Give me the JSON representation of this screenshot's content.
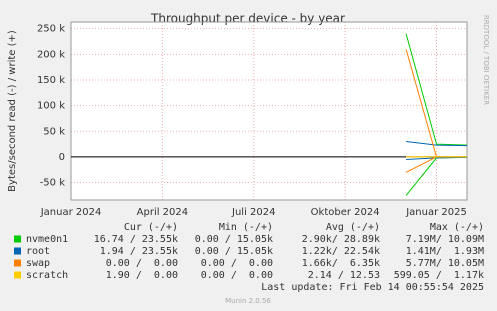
{
  "chart_data": {
    "type": "line",
    "title": "Throughput per device - by year",
    "y_label": "Bytes/second read (-) / write (+)",
    "side_label": "RRDTOOL / TOBI OETIKER",
    "x": [
      "2024-01",
      "2024-02",
      "2024-03",
      "2024-04",
      "2024-05",
      "2024-06",
      "2024-07",
      "2024-08",
      "2024-09",
      "2024-10",
      "2024-11",
      "2024-12",
      "2025-01",
      "2025-02"
    ],
    "xlim": [
      "2024-01",
      "2025-02"
    ],
    "xticks": [
      {
        "value": "2024-01",
        "label": "Januar 2024"
      },
      {
        "value": "2024-04",
        "label": "April 2024"
      },
      {
        "value": "2024-07",
        "label": "Juli 2024"
      },
      {
        "value": "2024-10",
        "label": "Oktober 2024"
      },
      {
        "value": "2025-01",
        "label": "Januar 2025"
      }
    ],
    "ylim": [
      -84000,
      263000
    ],
    "yticks": [
      {
        "value": -50000,
        "label": "-50 k"
      },
      0,
      {
        "value": 50000,
        "label": "50 k"
      },
      {
        "value": 100000,
        "label": "100 k"
      },
      {
        "value": 150000,
        "label": "150 k"
      },
      {
        "value": 200000,
        "label": "200 k"
      },
      {
        "value": 250000,
        "label": "250 k"
      }
    ],
    "grid": true,
    "series": [
      {
        "name": "nvme0n1",
        "color": "#00cc00",
        "values": [
          null,
          null,
          null,
          null,
          null,
          null,
          null,
          null,
          null,
          null,
          null,
          240000,
          25000,
          23000
        ],
        "read": [
          null,
          null,
          null,
          null,
          null,
          null,
          null,
          null,
          null,
          null,
          null,
          -75000,
          -2000,
          -1000
        ]
      },
      {
        "name": "root",
        "color": "#0066b3",
        "values": [
          null,
          null,
          null,
          null,
          null,
          null,
          null,
          null,
          null,
          null,
          null,
          30000,
          23000,
          22000
        ],
        "read": [
          null,
          null,
          null,
          null,
          null,
          null,
          null,
          null,
          null,
          null,
          null,
          -5000,
          -2000,
          -1000
        ]
      },
      {
        "name": "swap",
        "color": "#ff8000",
        "values": [
          null,
          null,
          null,
          null,
          null,
          null,
          null,
          null,
          null,
          null,
          null,
          210000,
          0,
          0
        ],
        "read": [
          null,
          null,
          null,
          null,
          null,
          null,
          null,
          null,
          null,
          null,
          null,
          -30000,
          0,
          0
        ]
      },
      {
        "name": "scratch",
        "color": "#ffcc00",
        "values": [
          null,
          null,
          null,
          null,
          null,
          null,
          null,
          null,
          null,
          null,
          null,
          12,
          0,
          0
        ],
        "read": [
          null,
          null,
          null,
          null,
          null,
          null,
          null,
          null,
          null,
          null,
          null,
          -2,
          0,
          0
        ]
      }
    ],
    "legend_table": {
      "headers": [
        "Cur (-/+)",
        "Min (-/+)",
        "Avg (-/+)",
        "Max (-/+)"
      ],
      "rows": [
        [
          "16.74 / 23.55k",
          "0.00 / 15.05k",
          "2.90k/ 28.89k",
          "7.19M/ 10.09M"
        ],
        [
          "1.94 / 23.55k",
          "0.00 / 15.05k",
          "1.22k/ 22.54k",
          "1.41M/  1.93M"
        ],
        [
          "0.00 /  0.00",
          "0.00 /  0.00",
          "1.66k/  6.35k",
          "5.77M/ 10.05M"
        ],
        [
          "1.90 /  0.00",
          "0.00 /  0.00",
          "2.14 / 12.53",
          "599.05 /  1.17k"
        ]
      ]
    },
    "last_update": "Last update: Fri Feb 14 00:55:54 2025",
    "footer": "Munin 2.0.56"
  }
}
